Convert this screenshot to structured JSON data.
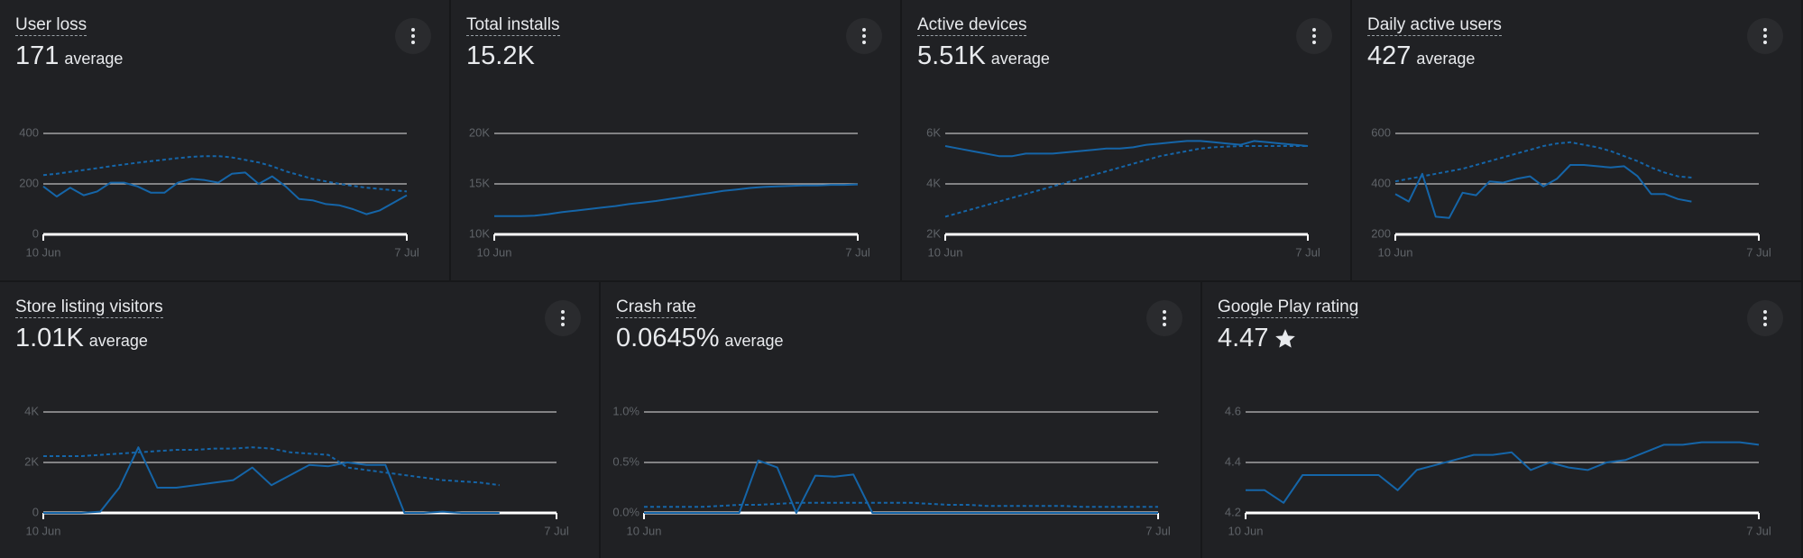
{
  "chart_data": [
    {
      "type": "line",
      "title": "User loss",
      "headline": "171",
      "headline_note": "average",
      "categories": [
        "10 Jun",
        null,
        null,
        null,
        null,
        null,
        null,
        null,
        null,
        null,
        null,
        null,
        null,
        null,
        null,
        null,
        null,
        null,
        null,
        null,
        null,
        null,
        null,
        null,
        null,
        null,
        null,
        "7 Jul"
      ],
      "ylim": [
        0,
        400
      ],
      "yticks": [
        0,
        200,
        400
      ],
      "series": [
        {
          "color": "#1565a8",
          "style": "solid",
          "values": [
            190,
            150,
            185,
            155,
            170,
            205,
            205,
            190,
            165,
            165,
            205,
            220,
            215,
            205,
            240,
            245,
            200,
            230,
            190,
            140,
            135,
            120,
            115,
            100,
            80,
            95,
            125,
            155
          ]
        },
        {
          "color": "#1565a8",
          "style": "dashed",
          "values": [
            235,
            240,
            248,
            255,
            262,
            270,
            277,
            284,
            290,
            296,
            302,
            307,
            310,
            310,
            305,
            295,
            285,
            270,
            250,
            235,
            220,
            210,
            200,
            192,
            185,
            180,
            175,
            170
          ]
        }
      ]
    },
    {
      "type": "line",
      "title": "Total installs",
      "headline": "15.2K",
      "categories": [
        "10 Jun",
        null,
        null,
        null,
        null,
        null,
        null,
        null,
        null,
        null,
        null,
        null,
        null,
        null,
        null,
        null,
        null,
        null,
        null,
        null,
        null,
        null,
        null,
        null,
        null,
        null,
        null,
        "7 Jul"
      ],
      "ylim": [
        10000,
        20000
      ],
      "yticks": [
        {
          "value": 10000,
          "label": "10K"
        },
        {
          "value": 15000,
          "label": "15K"
        },
        {
          "value": 20000,
          "label": "20K"
        }
      ],
      "series": [
        {
          "color": "#1565a8",
          "style": "solid",
          "values": [
            11800,
            11800,
            11800,
            11850,
            12000,
            12200,
            12350,
            12500,
            12650,
            12800,
            13000,
            13150,
            13300,
            13500,
            13700,
            13900,
            14100,
            14300,
            14450,
            14600,
            14700,
            14750,
            14800,
            14850,
            14850,
            14900,
            14900,
            14950
          ]
        }
      ]
    },
    {
      "type": "line",
      "title": "Active devices",
      "headline": "5.51K",
      "headline_note": "average",
      "categories": [
        "10 Jun",
        null,
        null,
        null,
        null,
        null,
        null,
        null,
        null,
        null,
        null,
        null,
        null,
        null,
        null,
        null,
        null,
        null,
        null,
        null,
        null,
        null,
        null,
        null,
        null,
        null,
        null,
        "7 Jul"
      ],
      "ylim": [
        2000,
        6000
      ],
      "yticks": [
        {
          "value": 2000,
          "label": "2K"
        },
        {
          "value": 4000,
          "label": "4K"
        },
        {
          "value": 6000,
          "label": "6K"
        }
      ],
      "series": [
        {
          "color": "#1565a8",
          "style": "solid",
          "values": [
            5500,
            5400,
            5300,
            5200,
            5100,
            5100,
            5200,
            5200,
            5200,
            5250,
            5300,
            5350,
            5400,
            5400,
            5450,
            5550,
            5600,
            5650,
            5700,
            5700,
            5650,
            5600,
            5550,
            5700,
            5650,
            5600,
            5550,
            5500
          ]
        },
        {
          "color": "#1565a8",
          "style": "dashed",
          "values": [
            2700,
            2850,
            3000,
            3150,
            3300,
            3450,
            3600,
            3750,
            3900,
            4050,
            4200,
            4350,
            4500,
            4650,
            4800,
            4950,
            5100,
            5200,
            5300,
            5400,
            5450,
            5480,
            5500,
            5500,
            5500,
            5500,
            5500,
            5500
          ]
        }
      ]
    },
    {
      "type": "line",
      "title": "Daily active users",
      "headline": "427",
      "headline_note": "average",
      "categories": [
        "10 Jun",
        null,
        null,
        null,
        null,
        null,
        null,
        null,
        null,
        null,
        null,
        null,
        null,
        null,
        null,
        null,
        null,
        null,
        null,
        null,
        null,
        null,
        null,
        null,
        null,
        null,
        null,
        "7 Jul"
      ],
      "ylim": [
        200,
        600
      ],
      "yticks": [
        200,
        400,
        600
      ],
      "series": [
        {
          "color": "#1565a8",
          "style": "solid",
          "values": [
            360,
            330,
            440,
            270,
            265,
            365,
            355,
            410,
            405,
            420,
            430,
            390,
            420,
            475,
            475,
            470,
            465,
            470,
            430,
            360,
            360,
            340,
            330,
            null,
            null,
            null,
            null,
            null
          ]
        },
        {
          "color": "#1565a8",
          "style": "dashed",
          "values": [
            410,
            420,
            430,
            440,
            450,
            460,
            475,
            490,
            505,
            520,
            535,
            550,
            560,
            565,
            555,
            545,
            530,
            510,
            490,
            465,
            445,
            430,
            425,
            null,
            null,
            null,
            null,
            null
          ]
        }
      ]
    },
    {
      "type": "line",
      "title": "Store listing visitors",
      "headline": "1.01K",
      "headline_note": "average",
      "categories": [
        "10 Jun",
        null,
        null,
        null,
        null,
        null,
        null,
        null,
        null,
        null,
        null,
        null,
        null,
        null,
        null,
        null,
        null,
        null,
        null,
        null,
        null,
        null,
        null,
        null,
        null,
        null,
        null,
        "7 Jul"
      ],
      "ylim": [
        0,
        4000
      ],
      "yticks": [
        0,
        {
          "value": 2000,
          "label": "2K"
        },
        {
          "value": 4000,
          "label": "4K"
        }
      ],
      "series": [
        {
          "color": "#1565a8",
          "style": "solid",
          "values": [
            0,
            0,
            0,
            50,
            1000,
            2600,
            1000,
            1000,
            1100,
            1200,
            1300,
            1800,
            1100,
            1500,
            1900,
            1850,
            2000,
            1900,
            1900,
            0,
            0,
            50,
            0,
            0,
            0,
            null,
            null,
            null
          ]
        },
        {
          "color": "#1565a8",
          "style": "dashed",
          "values": [
            2250,
            2250,
            2250,
            2300,
            2350,
            2400,
            2450,
            2500,
            2500,
            2550,
            2550,
            2600,
            2550,
            2400,
            2350,
            2300,
            1800,
            1700,
            1600,
            1500,
            1400,
            1300,
            1250,
            1200,
            1100,
            null,
            null,
            null
          ]
        }
      ]
    },
    {
      "type": "line",
      "title": "Crash rate",
      "headline": "0.0645%",
      "headline_note": "average",
      "categories": [
        "10 Jun",
        null,
        null,
        null,
        null,
        null,
        null,
        null,
        null,
        null,
        null,
        null,
        null,
        null,
        null,
        null,
        null,
        null,
        null,
        null,
        null,
        null,
        null,
        null,
        null,
        null,
        null,
        "7 Jul"
      ],
      "ylim": [
        0,
        1.0
      ],
      "yticks": [
        {
          "value": 0,
          "label": "0.0%"
        },
        {
          "value": 0.5,
          "label": "0.5%"
        },
        {
          "value": 1.0,
          "label": "1.0%"
        }
      ],
      "series": [
        {
          "color": "#1565a8",
          "style": "solid",
          "values": [
            0,
            0,
            0,
            0,
            0,
            0,
            0.52,
            0.45,
            0,
            0.37,
            0.36,
            0.38,
            0,
            0,
            0,
            0,
            0,
            0,
            0,
            0,
            0,
            0,
            0,
            0,
            0,
            0,
            0,
            0
          ]
        },
        {
          "color": "#1565a8",
          "style": "dashed",
          "values": [
            0.06,
            0.06,
            0.06,
            0.06,
            0.07,
            0.08,
            0.08,
            0.09,
            0.1,
            0.1,
            0.1,
            0.1,
            0.1,
            0.1,
            0.1,
            0.09,
            0.08,
            0.08,
            0.07,
            0.07,
            0.07,
            0.07,
            0.07,
            0.06,
            0.06,
            0.06,
            0.06,
            0.06
          ]
        }
      ]
    },
    {
      "type": "line",
      "title": "Google Play rating",
      "headline": "4.47",
      "categories": [
        "10 Jun",
        null,
        null,
        null,
        null,
        null,
        null,
        null,
        null,
        null,
        null,
        null,
        null,
        null,
        null,
        null,
        null,
        null,
        null,
        null,
        null,
        null,
        null,
        null,
        null,
        null,
        null,
        "7 Jul"
      ],
      "ylim": [
        4.2,
        4.6
      ],
      "yticks": [
        4.2,
        4.4,
        4.6
      ],
      "series": [
        {
          "color": "#1565a8",
          "style": "solid",
          "values": [
            4.29,
            4.29,
            4.24,
            4.35,
            4.35,
            4.35,
            4.35,
            4.35,
            4.29,
            4.37,
            4.39,
            4.41,
            4.43,
            4.43,
            4.44,
            4.37,
            4.4,
            4.38,
            4.37,
            4.4,
            4.41,
            4.44,
            4.47,
            4.47,
            4.48,
            4.48,
            4.48,
            4.47
          ]
        }
      ]
    }
  ]
}
